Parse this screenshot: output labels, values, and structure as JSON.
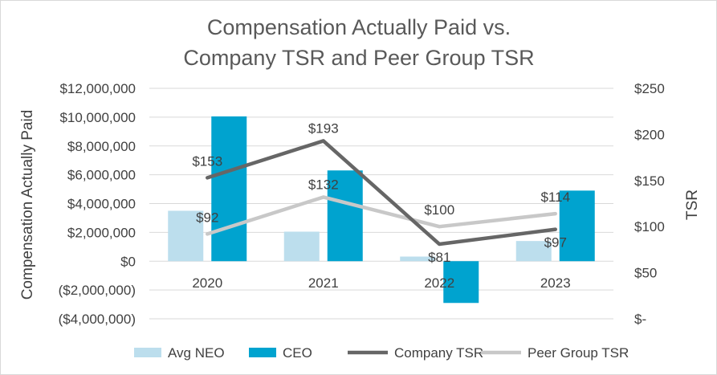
{
  "chart_data": {
    "type": "bar",
    "title_lines": [
      "Compensation Actually Paid vs.",
      "Company TSR and Peer Group TSR"
    ],
    "ylabel": "Compensation Actually Paid",
    "y2label": "TSR",
    "categories": [
      "2020",
      "2021",
      "2022",
      "2023"
    ],
    "y_ticks": [
      "$12,000,000",
      "$10,000,000",
      "$8,000,000",
      "$6,000,000",
      "$4,000,000",
      "$2,000,000",
      "$0",
      "($2,000,000)",
      "($4,000,000)"
    ],
    "y2_ticks": [
      "$250",
      "$200",
      "$150",
      "$100",
      "$50",
      "$-"
    ],
    "ylim": [
      -4000000,
      12000000
    ],
    "y2lim": [
      0,
      250
    ],
    "grid": true,
    "legend_position": "bottom",
    "series": [
      {
        "name": "Avg NEO",
        "kind": "bar",
        "axis": "left",
        "color": "#bcdeed",
        "values": [
          3500000,
          2050000,
          320000,
          1400000
        ]
      },
      {
        "name": "CEO",
        "kind": "bar",
        "axis": "left",
        "color": "#00a3cf",
        "values": [
          10050000,
          6300000,
          -2900000,
          4900000
        ]
      },
      {
        "name": "Company TSR",
        "kind": "line",
        "axis": "right",
        "color": "#666666",
        "values": [
          153,
          193,
          81,
          97
        ],
        "labels": [
          "$153",
          "$193",
          "$81",
          "$97"
        ]
      },
      {
        "name": "Peer Group TSR",
        "kind": "line",
        "axis": "right",
        "color": "#c8c8c8",
        "values": [
          92,
          132,
          100,
          114
        ],
        "labels": [
          "$92",
          "$132",
          "$100",
          "$114"
        ]
      }
    ]
  }
}
